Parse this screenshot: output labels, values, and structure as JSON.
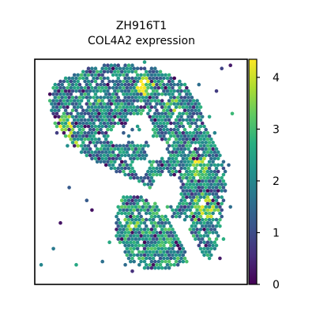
{
  "chart_data": {
    "type": "scatter",
    "title": [
      "ZH916T1",
      "COL4A2 expression"
    ],
    "xlabel": "",
    "ylabel": "",
    "marker": "hexagonal spots",
    "color_by": "COL4A2 expression",
    "colormap": "viridis",
    "colorbar": {
      "range": [
        0,
        4.35
      ],
      "ticks": [
        0,
        1,
        2,
        3,
        4
      ],
      "tick_labels": [
        "0",
        "1",
        "2",
        "3",
        "4"
      ],
      "placement": "right"
    },
    "axes_ticks_visible": false,
    "grid": false,
    "regions": [
      {
        "name": "tissue body",
        "polygon": [
          [
            0.23,
            0.95
          ],
          [
            0.28,
            0.97
          ],
          [
            0.4,
            0.98
          ],
          [
            0.58,
            0.96
          ],
          [
            0.7,
            0.9
          ],
          [
            0.78,
            0.8
          ],
          [
            0.8,
            0.7
          ],
          [
            0.86,
            0.62
          ],
          [
            0.9,
            0.55
          ],
          [
            0.9,
            0.42
          ],
          [
            0.88,
            0.3
          ],
          [
            0.86,
            0.18
          ],
          [
            0.82,
            0.1
          ],
          [
            0.75,
            0.18
          ],
          [
            0.72,
            0.28
          ],
          [
            0.64,
            0.3
          ],
          [
            0.58,
            0.4
          ],
          [
            0.5,
            0.45
          ],
          [
            0.38,
            0.5
          ],
          [
            0.25,
            0.56
          ],
          [
            0.18,
            0.62
          ],
          [
            0.1,
            0.7
          ],
          [
            0.06,
            0.8
          ],
          [
            0.08,
            0.88
          ],
          [
            0.15,
            0.92
          ]
        ],
        "level": 2.0
      },
      {
        "name": "bottom cluster",
        "polygon": [
          [
            0.42,
            0.4
          ],
          [
            0.55,
            0.38
          ],
          [
            0.62,
            0.3
          ],
          [
            0.7,
            0.18
          ],
          [
            0.72,
            0.1
          ],
          [
            0.6,
            0.06
          ],
          [
            0.45,
            0.08
          ],
          [
            0.38,
            0.2
          ],
          [
            0.38,
            0.32
          ]
        ],
        "level": 2.2
      }
    ],
    "hotspots": [
      {
        "center": [
          0.11,
          0.7
        ],
        "radius": 0.07,
        "level": 3.9
      },
      {
        "center": [
          0.15,
          0.6
        ],
        "radius": 0.06,
        "level": 3.8
      },
      {
        "center": [
          0.52,
          0.88
        ],
        "radius": 0.04,
        "level": 3.9
      },
      {
        "center": [
          0.65,
          0.78
        ],
        "radius": 0.04,
        "level": 3.4
      },
      {
        "center": [
          0.76,
          0.52
        ],
        "radius": 0.06,
        "level": 3.7
      },
      {
        "center": [
          0.8,
          0.34
        ],
        "radius": 0.07,
        "level": 3.5
      },
      {
        "center": [
          0.45,
          0.28
        ],
        "radius": 0.06,
        "level": 3.2
      },
      {
        "center": [
          0.3,
          0.82
        ],
        "radius": 0.05,
        "level": 2.8
      }
    ],
    "holes": [
      {
        "center": [
          0.49,
          0.69
        ],
        "radius": 0.065
      },
      {
        "center": [
          0.4,
          0.66
        ],
        "radius": 0.045
      },
      {
        "center": [
          0.57,
          0.6
        ],
        "radius": 0.05
      },
      {
        "center": [
          0.62,
          0.42
        ],
        "radius": 0.07
      },
      {
        "center": [
          0.3,
          0.4
        ],
        "radius": 0.09
      },
      {
        "center": [
          0.5,
          0.52
        ],
        "radius": 0.035
      }
    ]
  }
}
